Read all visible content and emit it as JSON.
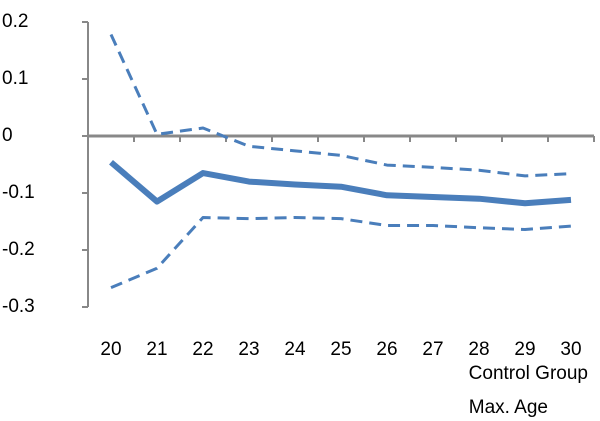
{
  "chart_data": {
    "type": "line",
    "categories": [
      "20",
      "21",
      "22",
      "23",
      "24",
      "25",
      "26",
      "27",
      "28",
      "29",
      "30"
    ],
    "series": [
      {
        "color": "#4a7ebb",
        "dashed": false,
        "width": 6,
        "values": [
          -0.046,
          -0.115,
          -0.065,
          -0.08,
          -0.085,
          -0.089,
          -0.104,
          -0.107,
          -0.11,
          -0.118,
          -0.112
        ]
      },
      {
        "color": "#4a7ebb",
        "dashed": true,
        "width": 3,
        "values": [
          0.178,
          0.003,
          0.014,
          -0.018,
          -0.026,
          -0.034,
          -0.051,
          -0.055,
          -0.06,
          -0.07,
          -0.066
        ]
      },
      {
        "color": "#4a7ebb",
        "dashed": true,
        "width": 3,
        "values": [
          -0.266,
          -0.232,
          -0.143,
          -0.145,
          -0.143,
          -0.145,
          -0.157,
          -0.157,
          -0.161,
          -0.164,
          -0.158
        ]
      }
    ],
    "x_label": [
      "Control Group",
      "Max. Age"
    ],
    "ylim": [
      -0.3,
      0.2
    ],
    "yticks": [
      -0.3,
      -0.2,
      -0.1,
      0,
      0.1,
      0.2
    ]
  }
}
